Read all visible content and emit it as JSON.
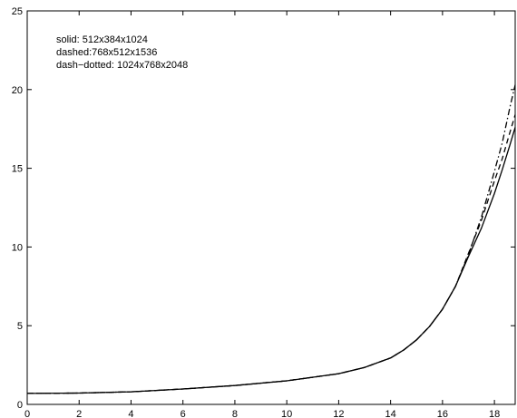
{
  "chart_data": {
    "type": "line",
    "title": "",
    "xlabel": "",
    "ylabel": "",
    "xlim": [
      0,
      18.8
    ],
    "ylim": [
      0,
      25
    ],
    "xticks": [
      0,
      2,
      4,
      6,
      8,
      10,
      12,
      14,
      16,
      18
    ],
    "yticks": [
      0,
      5,
      10,
      15,
      20,
      25
    ],
    "grid": false,
    "legend_placement": "top-left",
    "annotations": [
      "solid: 512x384x1024",
      "dashed:768x512x1536",
      "dash−dotted: 1024x768x2048"
    ],
    "series": [
      {
        "style": "solid",
        "x": [
          0,
          2,
          4,
          6,
          8,
          10,
          12,
          13,
          14,
          14.5,
          15,
          15.5,
          16,
          16.5,
          17,
          17.5,
          18,
          18.3,
          18.6,
          18.8
        ],
        "y": [
          0.7,
          0.72,
          0.8,
          0.98,
          1.2,
          1.5,
          1.95,
          2.35,
          2.95,
          3.45,
          4.1,
          4.95,
          6.05,
          7.5,
          9.4,
          11.2,
          13.4,
          14.9,
          16.5,
          17.6
        ]
      },
      {
        "style": "dashed",
        "x": [
          0,
          2,
          4,
          6,
          8,
          10,
          12,
          13,
          14,
          14.5,
          15,
          15.5,
          16,
          16.5,
          17,
          17.5,
          18,
          18.3,
          18.6,
          18.8
        ],
        "y": [
          0.7,
          0.72,
          0.8,
          0.98,
          1.2,
          1.5,
          1.95,
          2.35,
          2.95,
          3.45,
          4.1,
          4.95,
          6.05,
          7.5,
          9.6,
          11.7,
          14.2,
          15.6,
          17.3,
          18.4
        ]
      },
      {
        "style": "dash-dotted",
        "x": [
          0,
          2,
          4,
          6,
          8,
          10,
          12,
          13,
          14,
          14.5,
          15,
          15.5,
          16,
          16.5,
          17,
          17.5,
          18,
          18.3,
          18.6,
          18.8
        ],
        "y": [
          0.7,
          0.72,
          0.8,
          0.98,
          1.2,
          1.5,
          1.95,
          2.35,
          2.95,
          3.45,
          4.1,
          4.95,
          6.05,
          7.5,
          9.5,
          11.9,
          14.8,
          16.6,
          18.9,
          20.3
        ]
      }
    ]
  }
}
